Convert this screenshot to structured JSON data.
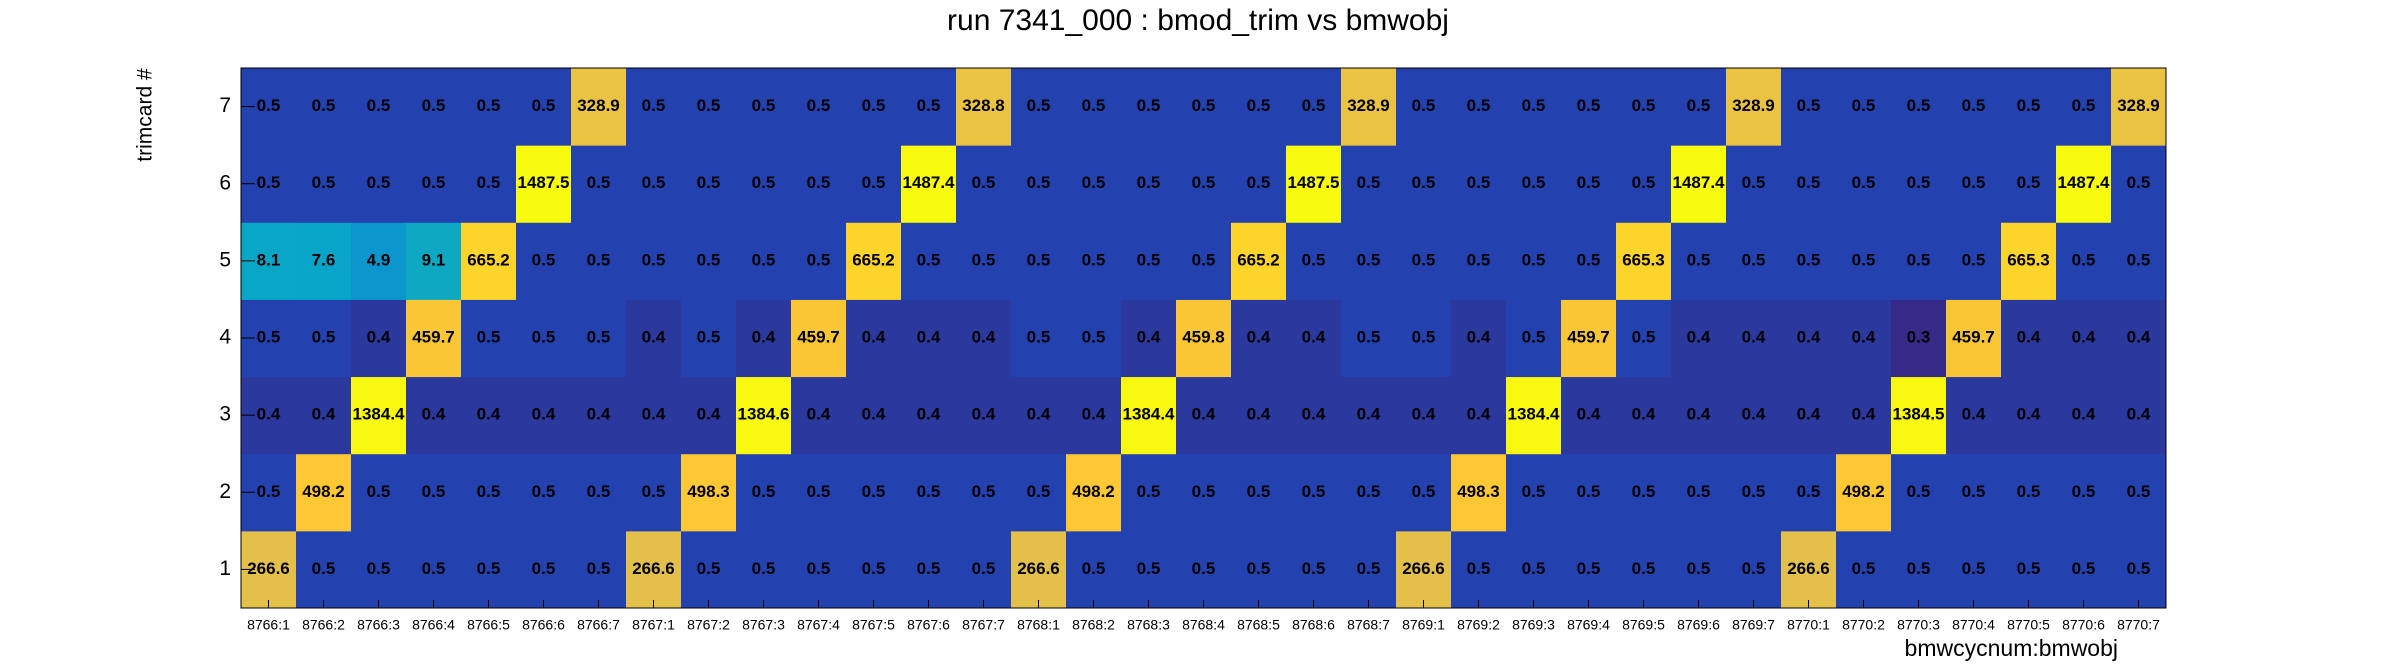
{
  "chart_data": {
    "type": "heatmap",
    "title": "run 7341_000 : bmod_trim vs bmwobj",
    "x_label": "bmwcycnum:bmwobj",
    "y_label": "trimcard #",
    "categories": [
      "8766:1",
      "8766:2",
      "8766:3",
      "8766:4",
      "8766:5",
      "8766:6",
      "8766:7",
      "8767:1",
      "8767:2",
      "8767:3",
      "8767:4",
      "8767:5",
      "8767:6",
      "8767:7",
      "8768:1",
      "8768:2",
      "8768:3",
      "8768:4",
      "8768:5",
      "8768:6",
      "8768:7",
      "8769:1",
      "8769:2",
      "8769:3",
      "8769:4",
      "8769:5",
      "8769:6",
      "8769:7",
      "8770:1",
      "8770:2",
      "8770:3",
      "8770:4",
      "8770:5",
      "8770:6",
      "8770:7"
    ],
    "y_categories": [
      "1",
      "2",
      "3",
      "4",
      "5",
      "6",
      "7"
    ],
    "values": [
      [
        266.6,
        0.5,
        0.5,
        0.5,
        0.5,
        0.5,
        0.5,
        266.6,
        0.5,
        0.5,
        0.5,
        0.5,
        0.5,
        0.5,
        266.6,
        0.5,
        0.5,
        0.5,
        0.5,
        0.5,
        0.5,
        266.6,
        0.5,
        0.5,
        0.5,
        0.5,
        0.5,
        0.5,
        266.6,
        0.5,
        0.5,
        0.5,
        0.5,
        0.5,
        0.5
      ],
      [
        0.5,
        498.2,
        0.5,
        0.5,
        0.5,
        0.5,
        0.5,
        0.5,
        498.3,
        0.5,
        0.5,
        0.5,
        0.5,
        0.5,
        0.5,
        498.2,
        0.5,
        0.5,
        0.5,
        0.5,
        0.5,
        0.5,
        498.3,
        0.5,
        0.5,
        0.5,
        0.5,
        0.5,
        0.5,
        498.2,
        0.5,
        0.5,
        0.5,
        0.5,
        0.5
      ],
      [
        0.4,
        0.4,
        1384.4,
        0.4,
        0.4,
        0.4,
        0.4,
        0.4,
        0.4,
        1384.6,
        0.4,
        0.4,
        0.4,
        0.4,
        0.4,
        0.4,
        1384.4,
        0.4,
        0.4,
        0.4,
        0.4,
        0.4,
        0.4,
        1384.4,
        0.4,
        0.4,
        0.4,
        0.4,
        0.4,
        0.4,
        1384.5,
        0.4,
        0.4,
        0.4,
        0.4
      ],
      [
        0.5,
        0.5,
        0.4,
        459.7,
        0.5,
        0.5,
        0.5,
        0.4,
        0.5,
        0.4,
        459.7,
        0.4,
        0.4,
        0.4,
        0.5,
        0.5,
        0.4,
        459.8,
        0.4,
        0.4,
        0.5,
        0.5,
        0.4,
        0.5,
        459.7,
        0.5,
        0.4,
        0.4,
        0.4,
        0.4,
        0.3,
        459.7,
        0.4,
        0.4,
        0.4
      ],
      [
        8.1,
        7.6,
        4.9,
        9.1,
        665.2,
        0.5,
        0.5,
        0.5,
        0.5,
        0.5,
        0.5,
        665.2,
        0.5,
        0.5,
        0.5,
        0.5,
        0.5,
        0.5,
        665.2,
        0.5,
        0.5,
        0.5,
        0.5,
        0.5,
        0.5,
        665.3,
        0.5,
        0.5,
        0.5,
        0.5,
        0.5,
        0.5,
        665.3,
        0.5,
        0.5
      ],
      [
        0.5,
        0.5,
        0.5,
        0.5,
        0.5,
        1487.5,
        0.5,
        0.5,
        0.5,
        0.5,
        0.5,
        0.5,
        1487.4,
        0.5,
        0.5,
        0.5,
        0.5,
        0.5,
        0.5,
        1487.5,
        0.5,
        0.5,
        0.5,
        0.5,
        0.5,
        0.5,
        1487.4,
        0.5,
        0.5,
        0.5,
        0.5,
        0.5,
        0.5,
        1487.4,
        0.5
      ],
      [
        0.5,
        0.5,
        0.5,
        0.5,
        0.5,
        0.5,
        328.9,
        0.5,
        0.5,
        0.5,
        0.5,
        0.5,
        0.5,
        328.8,
        0.5,
        0.5,
        0.5,
        0.5,
        0.5,
        0.5,
        328.9,
        0.5,
        0.5,
        0.5,
        0.5,
        0.5,
        0.5,
        328.9,
        0.5,
        0.5,
        0.5,
        0.5,
        0.5,
        0.5,
        328.9
      ]
    ],
    "z_log": true,
    "palette": [
      "#352a87",
      "#0f5cdd",
      "#1481d6",
      "#06a4ca",
      "#2eb7a4",
      "#87bf77",
      "#d1bb59",
      "#fec832",
      "#f9fb0e"
    ]
  }
}
